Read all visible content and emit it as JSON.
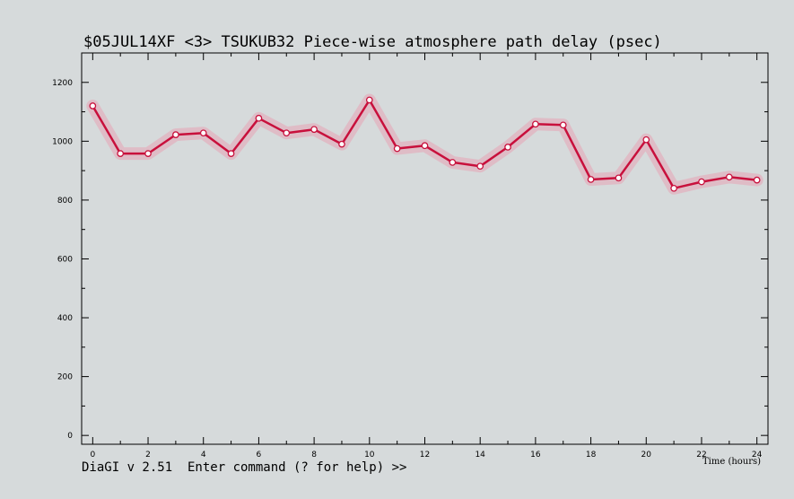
{
  "chart_data": {
    "type": "line",
    "title": "$05JUL14XF <3>  TSUKUB32  Piece-wise atmosphere path delay (psec)",
    "xlabel": "Time (hours)",
    "ylabel": "",
    "xlim": [
      -0.4,
      24.4
    ],
    "ylim": [
      -30,
      1300
    ],
    "x_ticks": [
      0,
      2,
      4,
      6,
      8,
      10,
      12,
      14,
      16,
      18,
      20,
      22,
      24
    ],
    "y_ticks": [
      0,
      200,
      400,
      600,
      800,
      1000,
      1200
    ],
    "grid": false,
    "series": [
      {
        "x": [
          0,
          1,
          2,
          3,
          4,
          5,
          6,
          7,
          8,
          9,
          10,
          11,
          12,
          13,
          14,
          15,
          16,
          17,
          18,
          19,
          20,
          21,
          22,
          23,
          24
        ],
        "values": [
          1120,
          958,
          958,
          1022,
          1028,
          958,
          1078,
          1028,
          1040,
          990,
          1140,
          975,
          985,
          928,
          915,
          980,
          1058,
          1055,
          870,
          875,
          1005,
          840,
          862,
          878,
          868
        ],
        "color": "#c8103c",
        "band_color": "#e8a4b4"
      }
    ]
  },
  "status": {
    "prompt": "DiaGI v 2.51  Enter command (? for help) >>"
  }
}
